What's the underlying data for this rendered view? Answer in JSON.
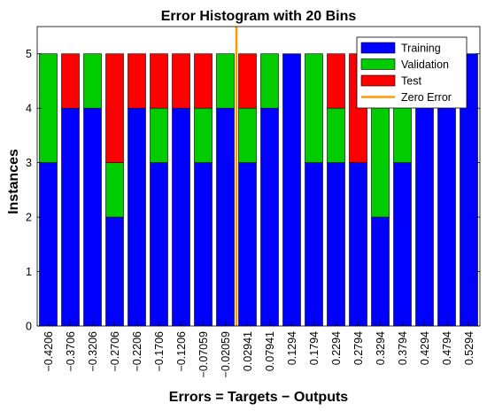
{
  "chart_data": {
    "type": "bar",
    "stacked": true,
    "title": "Error Histogram with 20 Bins",
    "xlabel": "Errors = Targets − Outputs",
    "ylabel": "Instances",
    "ylim": [
      0,
      5.5
    ],
    "yticks": [
      0,
      1,
      2,
      3,
      4,
      5
    ],
    "categories": [
      "−0.4206",
      "−0.3706",
      "−0.3206",
      "−0.2706",
      "−0.2206",
      "−0.1706",
      "−0.1206",
      "−0.07059",
      "−0.02059",
      "0.02941",
      "0.07941",
      "0.1294",
      "0.1794",
      "0.2294",
      "0.2794",
      "0.3294",
      "0.3794",
      "0.4294",
      "0.4794",
      "0.5294"
    ],
    "series": [
      {
        "name": "Training",
        "color": "#0000ff",
        "values": [
          3,
          4,
          4,
          2,
          4,
          3,
          4,
          3,
          4,
          3,
          4,
          5,
          3,
          3,
          3,
          2,
          3,
          5,
          5,
          5
        ]
      },
      {
        "name": "Validation",
        "color": "#00cc00",
        "values": [
          2,
          0,
          1,
          1,
          0,
          1,
          0,
          1,
          1,
          1,
          1,
          0,
          2,
          1,
          0,
          3,
          2,
          0,
          0,
          0
        ]
      },
      {
        "name": "Test",
        "color": "#ff0000",
        "values": [
          0,
          1,
          0,
          2,
          1,
          1,
          1,
          1,
          0,
          1,
          0,
          0,
          0,
          1,
          2,
          0,
          0,
          0,
          0,
          0
        ]
      }
    ],
    "zero_error": {
      "name": "Zero Error",
      "color": "#ff9900",
      "position_between": [
        8,
        9
      ]
    },
    "legend": "top-right",
    "grid": false
  }
}
